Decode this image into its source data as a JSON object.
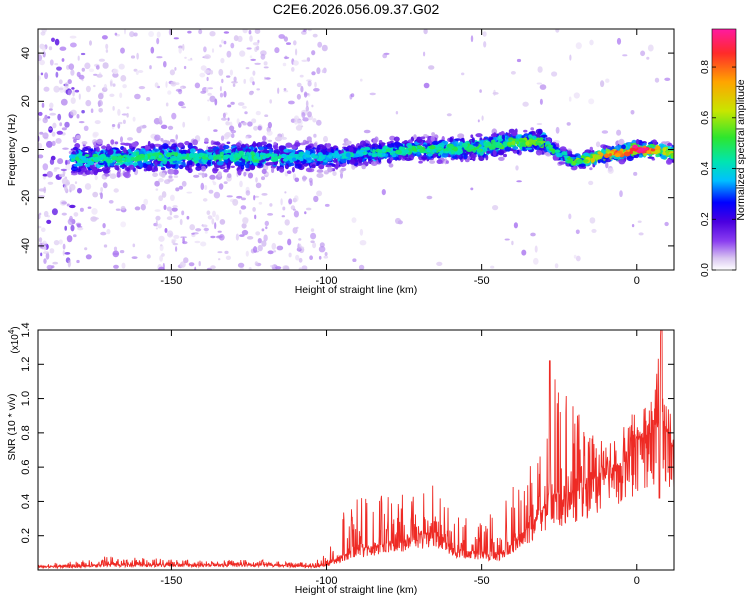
{
  "title": "C2E6.2026.056.09.37.G02",
  "chart_data": [
    {
      "type": "heatmap",
      "title": "C2E6.2026.056.09.37.G02",
      "xlabel": "Height of straight line (km)",
      "ylabel": "Frequency (Hz)",
      "xlim": [
        -193,
        12
      ],
      "ylim": [
        -50,
        50
      ],
      "x_ticks": [
        -150,
        -100,
        -50,
        0
      ],
      "y_ticks": [
        -40,
        -20,
        0,
        20,
        40
      ],
      "colorbar": {
        "label": "Normalized spectral amplitude",
        "range": [
          0,
          0.95
        ],
        "ticks": [
          0.0,
          0.2,
          0.4,
          0.6,
          0.8
        ],
        "colormap": [
          "#ffffff",
          "#d8c4f0",
          "#8a3ef0",
          "#4b00e0",
          "#0000ff",
          "#00bfff",
          "#00e5b0",
          "#2ee62e",
          "#c8e600",
          "#ffa500",
          "#ff2a2a",
          "#ff1aa0"
        ]
      },
      "ridge": {
        "description_points_x": [
          -193,
          -175,
          -150,
          -125,
          -100,
          -90,
          -75,
          -60,
          -50,
          -40,
          -30,
          -25,
          -20,
          -15,
          -10,
          -5,
          0,
          5,
          12
        ],
        "center_frequency": [
          -4,
          -4,
          -3,
          -3,
          -3,
          -2,
          0,
          0,
          1,
          3,
          3,
          -2,
          -5,
          -4,
          -2,
          -1,
          0,
          0,
          -2
        ],
        "peak_amplitude": [
          0.35,
          0.45,
          0.45,
          0.45,
          0.35,
          0.4,
          0.45,
          0.45,
          0.5,
          0.5,
          0.55,
          0.4,
          0.5,
          0.6,
          0.7,
          0.8,
          0.9,
          0.75,
          0.6
        ]
      }
    },
    {
      "type": "line",
      "xlabel": "Height of straight line (km)",
      "ylabel": "SNR (10 * v/v)",
      "y_multiplier": "(x10",
      "y_multiplier_exp": "4",
      "y_multiplier_close": ")",
      "xlim": [
        -193,
        12
      ],
      "ylim": [
        0,
        1.4
      ],
      "x_ticks": [
        -150,
        -100,
        -50,
        0
      ],
      "y_ticks": [
        0.2,
        0.4,
        0.6,
        0.8,
        1.0,
        1.2,
        1.4
      ],
      "line_color": "#ee2a24",
      "envelope": {
        "x": [
          -193,
          -180,
          -175,
          -160,
          -140,
          -120,
          -105,
          -100,
          -95,
          -90,
          -80,
          -70,
          -65,
          -60,
          -50,
          -45,
          -40,
          -35,
          -30,
          -28,
          -25,
          -20,
          -15,
          -10,
          -5,
          0,
          5,
          8,
          10,
          12
        ],
        "baseline": [
          0.02,
          0.02,
          0.03,
          0.03,
          0.03,
          0.03,
          0.02,
          0.03,
          0.08,
          0.12,
          0.15,
          0.2,
          0.22,
          0.12,
          0.1,
          0.08,
          0.15,
          0.25,
          0.35,
          0.45,
          0.4,
          0.45,
          0.5,
          0.55,
          0.6,
          0.75,
          0.8,
          0.85,
          0.8,
          0.7
        ],
        "peaks": [
          0.03,
          0.06,
          0.1,
          0.07,
          0.06,
          0.06,
          0.04,
          0.1,
          0.33,
          0.42,
          0.45,
          0.46,
          0.52,
          0.35,
          0.28,
          0.38,
          0.55,
          0.7,
          0.9,
          1.22,
          1.15,
          1.05,
          0.85,
          0.72,
          0.82,
          0.95,
          1.0,
          1.42,
          1.05,
          0.72
        ]
      }
    }
  ]
}
